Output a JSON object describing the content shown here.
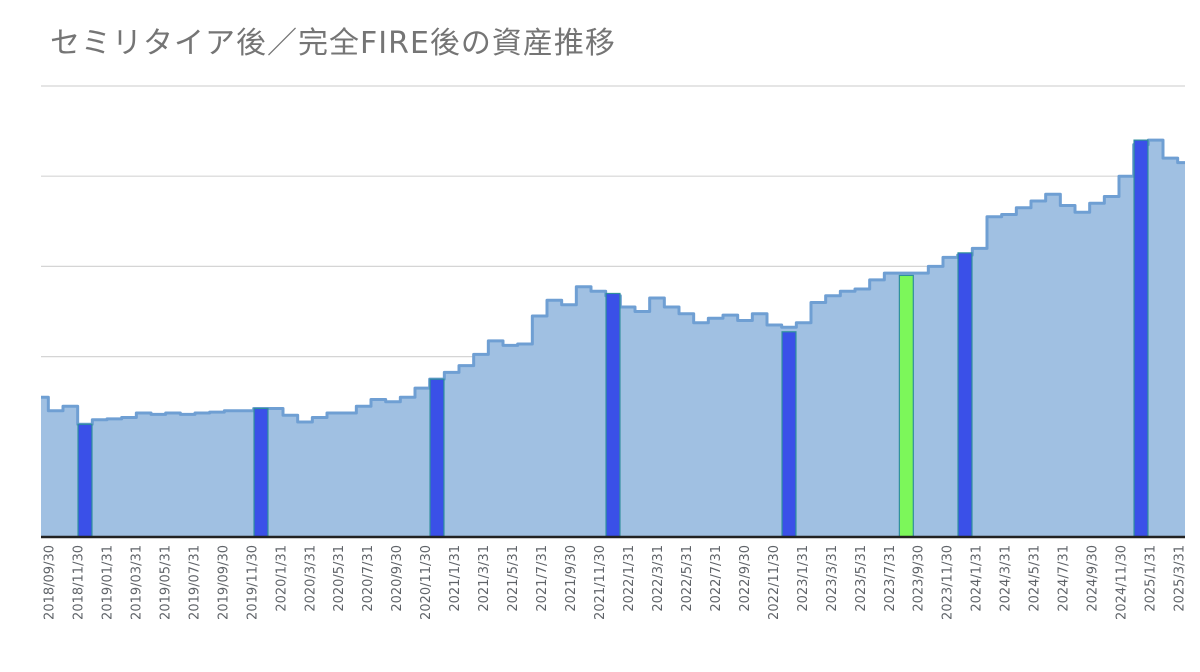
{
  "chart_data": {
    "type": "area",
    "title": "セミリタイア後／完全FIRE後の資産推移",
    "xlabel": "",
    "ylabel": "",
    "y_tick_labels_shown": false,
    "grid": true,
    "ylim": [
      0,
      100
    ],
    "x_tick_labels": [
      "2018/09/30",
      "2018/11/30",
      "2019/01/31",
      "2019/03/31",
      "2019/05/31",
      "2019/07/31",
      "2019/09/30",
      "2019/11/30",
      "2020/1/31",
      "2020/3/31",
      "2020/5/31",
      "2020/7/31",
      "2020/9/30",
      "2020/11/30",
      "2021/1/31",
      "2021/3/31",
      "2021/5/31",
      "2021/7/31",
      "2021/9/30",
      "2021/11/30",
      "2022/1/31",
      "2022/3/31",
      "2022/5/31",
      "2022/7/31",
      "2022/9/30",
      "2022/11/30",
      "2023/1/31",
      "2023/3/31",
      "2023/5/31",
      "2023/7/31",
      "2023/9/30",
      "2023/11/30",
      "2024/1/31",
      "2024/3/31",
      "2024/5/31",
      "2024/7/31",
      "2024/9/30",
      "2024/11/30",
      "2025/1/31",
      "2025/3/31"
    ],
    "series": [
      {
        "values": [
          31,
          28,
          29,
          25,
          26,
          26.2,
          26.5,
          27.5,
          27.2,
          27.5,
          27.2,
          27.5,
          27.7,
          28,
          28,
          28.5,
          28.5,
          27,
          25.5,
          26.5,
          27.5,
          27.5,
          29,
          30.5,
          30,
          31,
          33,
          35,
          36.5,
          38,
          40.5,
          43.5,
          42.5,
          42.8,
          49,
          52.5,
          51.5,
          55.5,
          54.5,
          53.5,
          51,
          50,
          53,
          51,
          49.5,
          47.5,
          48.5,
          49.2,
          48,
          49.5,
          47,
          46.5,
          47.5,
          52,
          53.5,
          54.5,
          55,
          57,
          58.5,
          58.5,
          58.5,
          60,
          62,
          62.5,
          64,
          71,
          71.5,
          73,
          74.5,
          76,
          73.5,
          72,
          74,
          75.5,
          80,
          87,
          88,
          84,
          83
        ]
      }
    ],
    "highlight_bars": [
      {
        "x_index": 3,
        "value": 25,
        "color": "#3a50e8"
      },
      {
        "x_index": 15,
        "value": 28.5,
        "color": "#3a50e8"
      },
      {
        "x_index": 27,
        "value": 35,
        "color": "#3a50e8"
      },
      {
        "x_index": 39,
        "value": 54,
        "color": "#3a50e8"
      },
      {
        "x_index": 51,
        "value": 45.5,
        "color": "#3a50e8"
      },
      {
        "x_index": 59,
        "value": 58,
        "color": "#7cf75a"
      },
      {
        "x_index": 63,
        "value": 63,
        "color": "#3a50e8"
      },
      {
        "x_index": 75,
        "value": 88,
        "color": "#3a50e8"
      }
    ],
    "colors": {
      "area_fill": "#a0c0e2",
      "area_line": "#6f9fd3",
      "grid": "#d5d5d5",
      "axis": "#222222"
    }
  }
}
